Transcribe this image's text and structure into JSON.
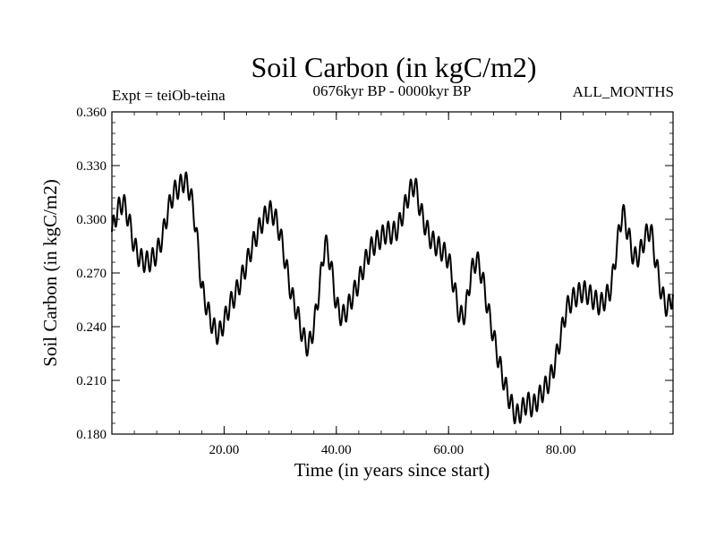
{
  "chart_data": {
    "type": "line",
    "title": "Soil Carbon (in kgC/m2)",
    "subtitle_left": "Expt = teiOb-teina",
    "subtitle_center": "0676kyr BP - 0000kyr BP",
    "subtitle_right": "ALL_MONTHS",
    "xlabel": "Time (in years since start)",
    "ylabel": "Soil Carbon (in kgC/m2)",
    "xlim": [
      0,
      100
    ],
    "ylim": [
      0.18,
      0.36
    ],
    "x_ticks": [
      20,
      40,
      60,
      80
    ],
    "x_tick_labels": [
      "20.00",
      "40.00",
      "60.00",
      "80.00"
    ],
    "y_ticks": [
      0.18,
      0.21,
      0.24,
      0.27,
      0.3,
      0.33,
      0.36
    ],
    "y_tick_labels": [
      "0.180",
      "0.210",
      "0.240",
      "0.270",
      "0.300",
      "0.330",
      "0.360"
    ],
    "grid": false,
    "series": [
      {
        "name": "Soil Carbon",
        "color": "#000000",
        "seasonal_amplitude": 0.006,
        "x": [
          0,
          1,
          2,
          3,
          4,
          5,
          6,
          7,
          8,
          9,
          10,
          11,
          12,
          13,
          14,
          15,
          16,
          17,
          18,
          19,
          20,
          21,
          22,
          23,
          24,
          25,
          26,
          27,
          28,
          29,
          30,
          31,
          32,
          33,
          34,
          35,
          36,
          37,
          38,
          39,
          40,
          41,
          42,
          43,
          44,
          45,
          46,
          47,
          48,
          49,
          50,
          51,
          52,
          53,
          54,
          55,
          56,
          57,
          58,
          59,
          60,
          61,
          62,
          63,
          64,
          65,
          66,
          67,
          68,
          69,
          70,
          71,
          72,
          73,
          74,
          75,
          76,
          77,
          78,
          79,
          80,
          81,
          82,
          83,
          84,
          85,
          86,
          87,
          88,
          89,
          90,
          91,
          92,
          93,
          94,
          95,
          96,
          97,
          98,
          99,
          100
        ],
        "values": [
          0.293,
          0.305,
          0.31,
          0.3,
          0.285,
          0.278,
          0.276,
          0.277,
          0.281,
          0.29,
          0.305,
          0.315,
          0.318,
          0.322,
          0.315,
          0.295,
          0.262,
          0.25,
          0.24,
          0.235,
          0.243,
          0.252,
          0.258,
          0.266,
          0.275,
          0.285,
          0.293,
          0.3,
          0.305,
          0.302,
          0.292,
          0.275,
          0.258,
          0.248,
          0.235,
          0.228,
          0.24,
          0.262,
          0.288,
          0.275,
          0.252,
          0.245,
          0.25,
          0.258,
          0.265,
          0.275,
          0.283,
          0.287,
          0.29,
          0.293,
          0.292,
          0.295,
          0.305,
          0.315,
          0.32,
          0.305,
          0.295,
          0.288,
          0.285,
          0.282,
          0.278,
          0.262,
          0.245,
          0.248,
          0.27,
          0.278,
          0.268,
          0.25,
          0.235,
          0.22,
          0.208,
          0.198,
          0.19,
          0.193,
          0.198,
          0.195,
          0.2,
          0.205,
          0.21,
          0.22,
          0.235,
          0.25,
          0.255,
          0.258,
          0.26,
          0.258,
          0.255,
          0.252,
          0.256,
          0.262,
          0.285,
          0.305,
          0.292,
          0.278,
          0.28,
          0.29,
          0.295,
          0.275,
          0.258,
          0.25,
          0.258
        ]
      }
    ]
  }
}
